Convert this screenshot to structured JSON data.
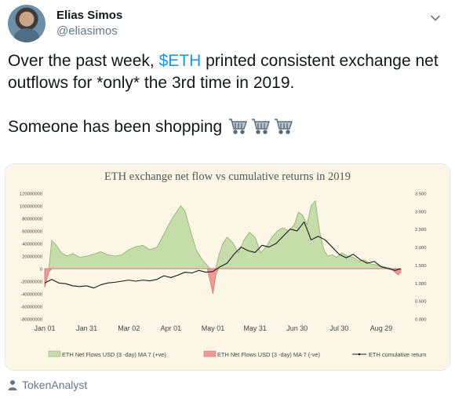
{
  "author": {
    "name": "Elias Simos",
    "handle": "@eliasimos"
  },
  "tweet": {
    "line1_pre": "Over the past week, ",
    "cashtag": "$ETH",
    "line1_post": " printed consistent exchange net outflows for *only* the 3rd time in 2019.",
    "line2": "Someone has been shopping",
    "emoji": "shopping-cart-icon x3"
  },
  "source": {
    "label": "TokenAnalyst",
    "icon": "person-icon"
  },
  "colors": {
    "cashtag": "#1b95e0",
    "positive_area": "#c6dcaa",
    "negative_area": "#ee9a9a",
    "plot_bg": "#fbf6e6",
    "return_line": "#1a1a1a"
  },
  "chart_data": {
    "type": "area",
    "title": "ETH exchange net flow vs cumulative returns in 2019",
    "x_ticks": [
      "Jan 01",
      "Jan 31",
      "Mar 02",
      "Apr 01",
      "May 01",
      "May 31",
      "Jun 30",
      "Jul 30",
      "Aug 29"
    ],
    "y_left_ticks": [
      "120000000",
      "100000000",
      "80000000",
      "60000000",
      "40000000",
      "20000000",
      "0",
      "-20000000",
      "-40000000",
      "-60000000",
      "-80000000"
    ],
    "y_left_range": [
      -80000000,
      120000000
    ],
    "y_right_ticks": [
      "3.500",
      "3.000",
      "2.500",
      "2.000",
      "1.500",
      "1.000",
      "0.500",
      "0.000"
    ],
    "y_right_range": [
      0,
      3.5
    ],
    "legend": [
      "ETH Net Flows USD (3 -day) MA 7 (+ve)",
      "ETH Net Flows USD (3 -day) MA 7 (-ve)",
      "ETH cumulative return"
    ],
    "legend_position": "bottom",
    "series": [
      {
        "name": "ETH Net Flows USD (3 -day) MA 7",
        "x_day": [
          0,
          3,
          5,
          8,
          12,
          16,
          20,
          25,
          30,
          35,
          40,
          45,
          50,
          55,
          60,
          65,
          70,
          75,
          80,
          85,
          88,
          91,
          94,
          97,
          100,
          104,
          108,
          112,
          116,
          118,
          120,
          122,
          124,
          127,
          130,
          134,
          138,
          142,
          146,
          150,
          154,
          158,
          162,
          166,
          170,
          174,
          178,
          181,
          184,
          187,
          190,
          193,
          196,
          199,
          202,
          205,
          208,
          212,
          216,
          220,
          224,
          228,
          232,
          236,
          240,
          244,
          248,
          250,
          252,
          254
        ],
        "values": [
          -30000000,
          -5000000,
          45000000,
          38000000,
          25000000,
          20000000,
          24000000,
          18000000,
          20000000,
          23000000,
          27000000,
          22000000,
          20000000,
          22000000,
          30000000,
          35000000,
          37000000,
          30000000,
          34000000,
          55000000,
          68000000,
          80000000,
          90000000,
          100000000,
          92000000,
          60000000,
          30000000,
          15000000,
          5000000,
          -20000000,
          -40000000,
          -10000000,
          20000000,
          40000000,
          50000000,
          42000000,
          25000000,
          45000000,
          58000000,
          50000000,
          25000000,
          35000000,
          50000000,
          60000000,
          65000000,
          60000000,
          70000000,
          90000000,
          85000000,
          70000000,
          100000000,
          108000000,
          60000000,
          30000000,
          20000000,
          22000000,
          18000000,
          25000000,
          20000000,
          18000000,
          12000000,
          14000000,
          8000000,
          6000000,
          4000000,
          2000000,
          -2000000,
          -6000000,
          -10000000,
          -6000000
        ]
      },
      {
        "name": "ETH cumulative return",
        "x_day": [
          0,
          5,
          10,
          15,
          20,
          25,
          30,
          35,
          40,
          45,
          50,
          55,
          60,
          65,
          70,
          75,
          80,
          85,
          90,
          95,
          100,
          105,
          110,
          115,
          120,
          125,
          130,
          135,
          140,
          145,
          150,
          155,
          160,
          165,
          170,
          175,
          180,
          185,
          190,
          195,
          200,
          205,
          210,
          215,
          220,
          225,
          230,
          235,
          240,
          245,
          250,
          254
        ],
        "values": [
          1.0,
          1.1,
          1.0,
          0.98,
          0.92,
          0.9,
          0.92,
          0.86,
          0.95,
          1.0,
          1.02,
          1.05,
          1.08,
          1.05,
          1.08,
          1.06,
          1.1,
          1.2,
          1.15,
          1.22,
          1.3,
          1.28,
          1.35,
          1.3,
          1.32,
          1.45,
          1.55,
          1.8,
          2.0,
          1.9,
          1.85,
          2.05,
          2.0,
          2.1,
          2.3,
          2.5,
          2.45,
          2.7,
          2.2,
          2.3,
          2.2,
          2.0,
          1.8,
          1.7,
          1.8,
          1.65,
          1.55,
          1.6,
          1.45,
          1.4,
          1.35,
          1.4
        ]
      }
    ]
  }
}
